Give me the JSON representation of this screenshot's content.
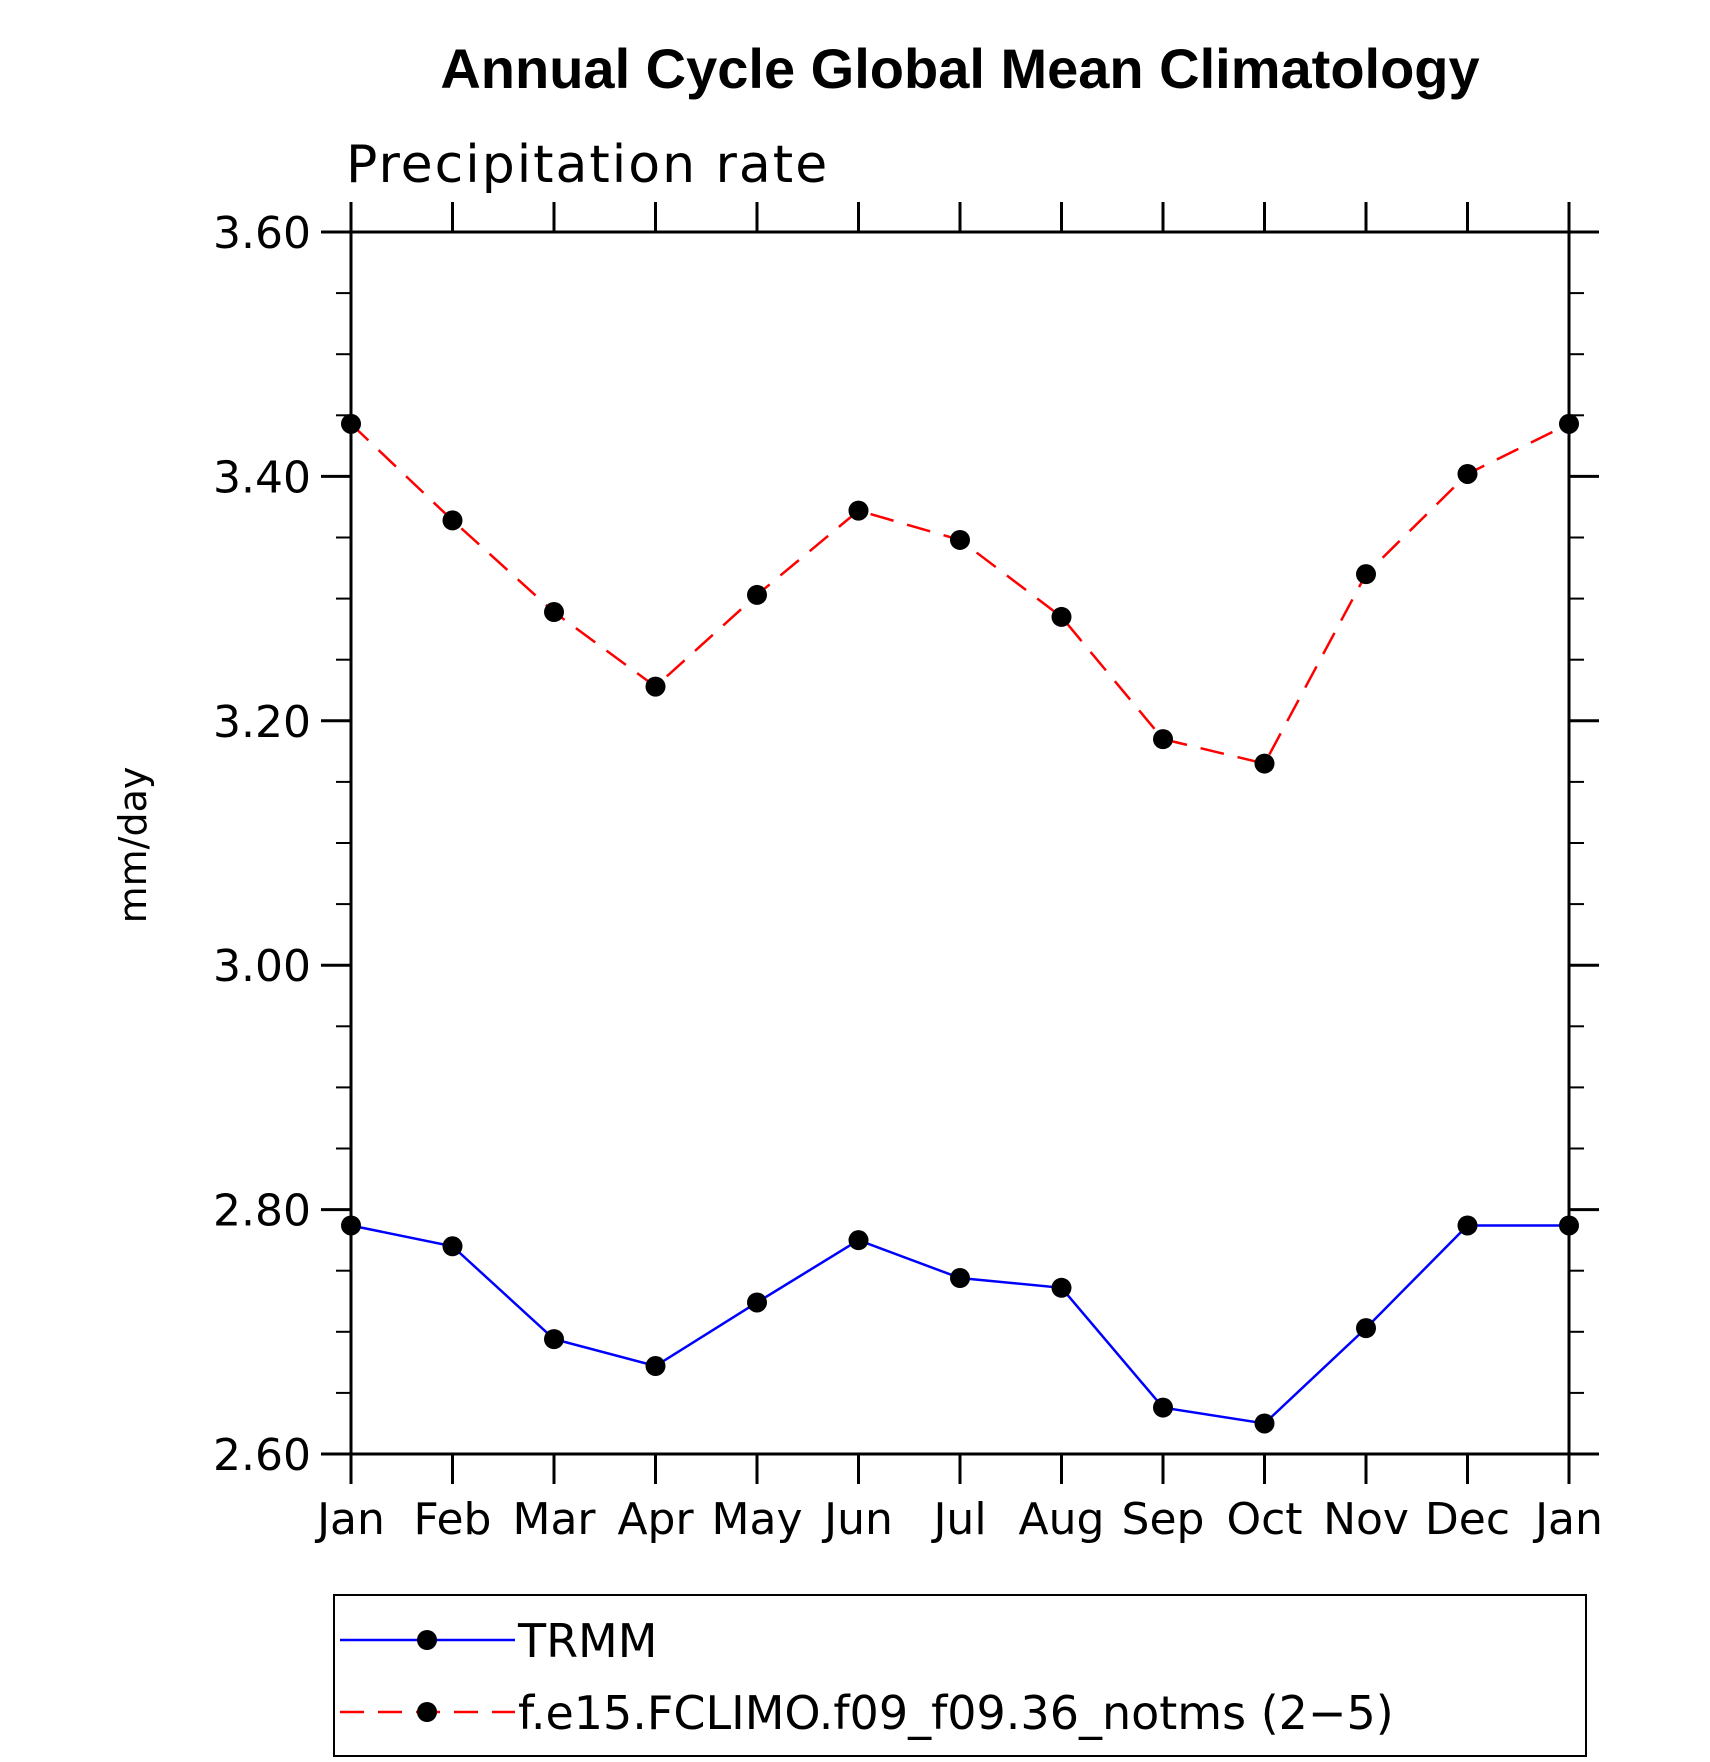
{
  "chart_data": {
    "type": "line",
    "title": "Annual Cycle Global Mean Climatology",
    "subtitle": "Precipitation rate",
    "xlabel": "",
    "ylabel": "mm/day",
    "categories": [
      "Jan",
      "Feb",
      "Mar",
      "Apr",
      "May",
      "Jun",
      "Jul",
      "Aug",
      "Sep",
      "Oct",
      "Nov",
      "Dec",
      "Jan"
    ],
    "ylim": [
      2.6,
      3.6
    ],
    "yticks": [
      "2.60",
      "2.80",
      "3.00",
      "3.20",
      "3.40",
      "3.60"
    ],
    "ytick_values": [
      2.6,
      2.8,
      3.0,
      3.2,
      3.4,
      3.6
    ],
    "legend_position": "bottom",
    "series": [
      {
        "name": "TRMM",
        "color": "#0000ff",
        "dash": "solid",
        "values": [
          2.787,
          2.77,
          2.694,
          2.672,
          2.724,
          2.775,
          2.744,
          2.736,
          2.638,
          2.625,
          2.703,
          2.787,
          2.787
        ]
      },
      {
        "name": "f.e15.FCLIMO.f09_f09.36_notms (2−5)",
        "color": "#ff0000",
        "dash": "dashed",
        "values": [
          3.443,
          3.364,
          3.289,
          3.228,
          3.303,
          3.372,
          3.348,
          3.285,
          3.185,
          3.165,
          3.32,
          3.402,
          3.443
        ]
      }
    ],
    "marker_color": "#000000"
  }
}
